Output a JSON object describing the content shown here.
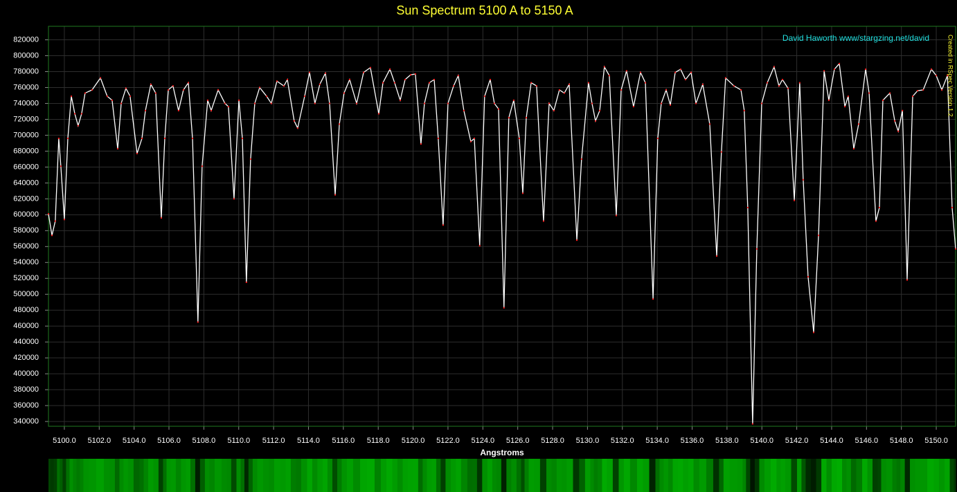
{
  "chart_data": {
    "type": "line",
    "title": "Sun Spectrum 5100 A to 5150 A",
    "annotations": [
      "David Haworth www/stargzing.net/david",
      "Created in RSpec Version 1.2"
    ],
    "x_label": "Angstroms",
    "grid": true,
    "xlim": [
      5099.09,
      5151.11
    ],
    "ylim": [
      334000,
      837000
    ],
    "xticks": [
      {
        "value": 5100,
        "label": "5100.0"
      },
      {
        "value": 5102,
        "label": "5102.0"
      },
      {
        "value": 5104,
        "label": "5104.0"
      },
      {
        "value": 5106,
        "label": "5106.0"
      },
      {
        "value": 5108,
        "label": "5108.0"
      },
      {
        "value": 5110,
        "label": "5110.0"
      },
      {
        "value": 5112,
        "label": "5112.0"
      },
      {
        "value": 5114,
        "label": "5114.0"
      },
      {
        "value": 5116,
        "label": "5116.0"
      },
      {
        "value": 5118,
        "label": "5118.0"
      },
      {
        "value": 5120,
        "label": "5120.0"
      },
      {
        "value": 5122,
        "label": "5122.0"
      },
      {
        "value": 5124,
        "label": "5124.0"
      },
      {
        "value": 5126,
        "label": "5126.0"
      },
      {
        "value": 5128,
        "label": "5128.0"
      },
      {
        "value": 5130,
        "label": "5130.0"
      },
      {
        "value": 5132,
        "label": "5132.0"
      },
      {
        "value": 5134,
        "label": "5134.0"
      },
      {
        "value": 5136,
        "label": "5136.0"
      },
      {
        "value": 5138,
        "label": "5138.0"
      },
      {
        "value": 5140,
        "label": "5140.0"
      },
      {
        "value": 5142,
        "label": "5142.0"
      },
      {
        "value": 5144,
        "label": "5144.0"
      },
      {
        "value": 5146,
        "label": "5146.0"
      },
      {
        "value": 5148,
        "label": "5148.0"
      },
      {
        "value": 5150,
        "label": "5150.0"
      }
    ],
    "yticks": [
      340000,
      360000,
      380000,
      400000,
      420000,
      440000,
      460000,
      480000,
      500000,
      520000,
      540000,
      560000,
      580000,
      600000,
      620000,
      640000,
      660000,
      680000,
      700000,
      720000,
      740000,
      760000,
      780000,
      800000,
      820000
    ],
    "series": [
      {
        "color": "#ffffff",
        "marker_color": "#ff2020",
        "x": [
          5099.09,
          5099.29,
          5099.48,
          5099.68,
          5099.8,
          5100.0,
          5100.2,
          5100.4,
          5100.6,
          5100.79,
          5100.99,
          5101.19,
          5101.59,
          5102.07,
          5102.46,
          5102.74,
          5103.06,
          5103.26,
          5103.53,
          5103.77,
          5104.17,
          5104.45,
          5104.65,
          5104.96,
          5105.24,
          5105.56,
          5105.76,
          5105.96,
          5106.23,
          5106.55,
          5106.83,
          5107.11,
          5107.35,
          5107.66,
          5107.9,
          5108.22,
          5108.42,
          5108.82,
          5109.21,
          5109.41,
          5109.73,
          5110.01,
          5110.21,
          5110.44,
          5110.68,
          5110.92,
          5111.2,
          5111.6,
          5111.87,
          5112.19,
          5112.59,
          5112.79,
          5113.18,
          5113.38,
          5113.78,
          5114.06,
          5114.37,
          5114.65,
          5114.97,
          5115.21,
          5115.53,
          5115.77,
          5116.04,
          5116.36,
          5116.76,
          5117.16,
          5117.55,
          5118.03,
          5118.27,
          5118.67,
          5118.94,
          5119.26,
          5119.54,
          5119.86,
          5120.13,
          5120.45,
          5120.65,
          5120.93,
          5121.21,
          5121.44,
          5121.72,
          5122.0,
          5122.32,
          5122.59,
          5122.91,
          5123.31,
          5123.51,
          5123.82,
          5124.1,
          5124.42,
          5124.66,
          5124.9,
          5125.21,
          5125.49,
          5125.77,
          5126.09,
          5126.29,
          5126.49,
          5126.77,
          5127.08,
          5127.48,
          5127.8,
          5128.07,
          5128.39,
          5128.67,
          5128.95,
          5129.39,
          5129.66,
          5130.06,
          5130.26,
          5130.46,
          5130.7,
          5130.97,
          5131.25,
          5131.65,
          5131.93,
          5132.24,
          5132.64,
          5133.04,
          5133.32,
          5133.76,
          5134.03,
          5134.23,
          5134.51,
          5134.75,
          5135.03,
          5135.34,
          5135.62,
          5135.94,
          5136.22,
          5136.61,
          5137.01,
          5137.41,
          5137.68,
          5137.92,
          5138.4,
          5138.8,
          5138.99,
          5139.19,
          5139.47,
          5139.71,
          5139.99,
          5140.31,
          5140.7,
          5140.98,
          5141.18,
          5141.5,
          5141.86,
          5142.17,
          5142.37,
          5142.65,
          5142.97,
          5143.25,
          5143.57,
          5143.84,
          5144.16,
          5144.44,
          5144.76,
          5144.95,
          5145.27,
          5145.55,
          5145.95,
          5146.15,
          5146.54,
          5146.74,
          5146.94,
          5147.34,
          5147.62,
          5147.82,
          5148.06,
          5148.33,
          5148.65,
          5148.93,
          5149.25,
          5149.72,
          5150.0,
          5150.32,
          5150.64,
          5150.91,
          5151.11
        ],
        "values": [
          601000,
          574000,
          592000,
          696000,
          661000,
          594000,
          696000,
          749000,
          727000,
          712000,
          727000,
          753000,
          757000,
          772000,
          749000,
          744000,
          683000,
          740000,
          759000,
          749000,
          677000,
          696000,
          731000,
          764000,
          753000,
          596000,
          696000,
          757000,
          762000,
          731000,
          757000,
          766000,
          696000,
          465000,
          661000,
          744000,
          731000,
          757000,
          740000,
          736000,
          620000,
          744000,
          696000,
          515000,
          670000,
          740000,
          760000,
          749000,
          740000,
          768000,
          762000,
          770000,
          718000,
          709000,
          749000,
          779000,
          740000,
          764000,
          778000,
          740000,
          625000,
          714000,
          753000,
          770000,
          740000,
          779000,
          785000,
          727000,
          766000,
          783000,
          766000,
          744000,
          770000,
          776000,
          777000,
          689000,
          740000,
          766000,
          770000,
          696000,
          587000,
          740000,
          762000,
          775000,
          731000,
          692000,
          696000,
          561000,
          749000,
          770000,
          740000,
          733000,
          483000,
          722000,
          744000,
          696000,
          627000,
          722000,
          766000,
          762000,
          592000,
          740000,
          731000,
          757000,
          753000,
          764000,
          568000,
          670000,
          766000,
          740000,
          718000,
          731000,
          786000,
          775000,
          599000,
          757000,
          781000,
          736000,
          779000,
          766000,
          494000,
          696000,
          740000,
          757000,
          738000,
          779000,
          783000,
          770000,
          779000,
          740000,
          764000,
          714000,
          548000,
          679000,
          772000,
          762000,
          757000,
          731000,
          609000,
          337000,
          557000,
          740000,
          766000,
          786000,
          762000,
          770000,
          759000,
          618000,
          766000,
          644000,
          522000,
          452000,
          574000,
          781000,
          744000,
          783000,
          790000,
          736000,
          749000,
          683000,
          714000,
          783000,
          753000,
          592000,
          609000,
          744000,
          753000,
          718000,
          705000,
          731000,
          518000,
          749000,
          756000,
          757000,
          783000,
          775000,
          757000,
          775000,
          609000,
          557000
        ]
      }
    ]
  }
}
